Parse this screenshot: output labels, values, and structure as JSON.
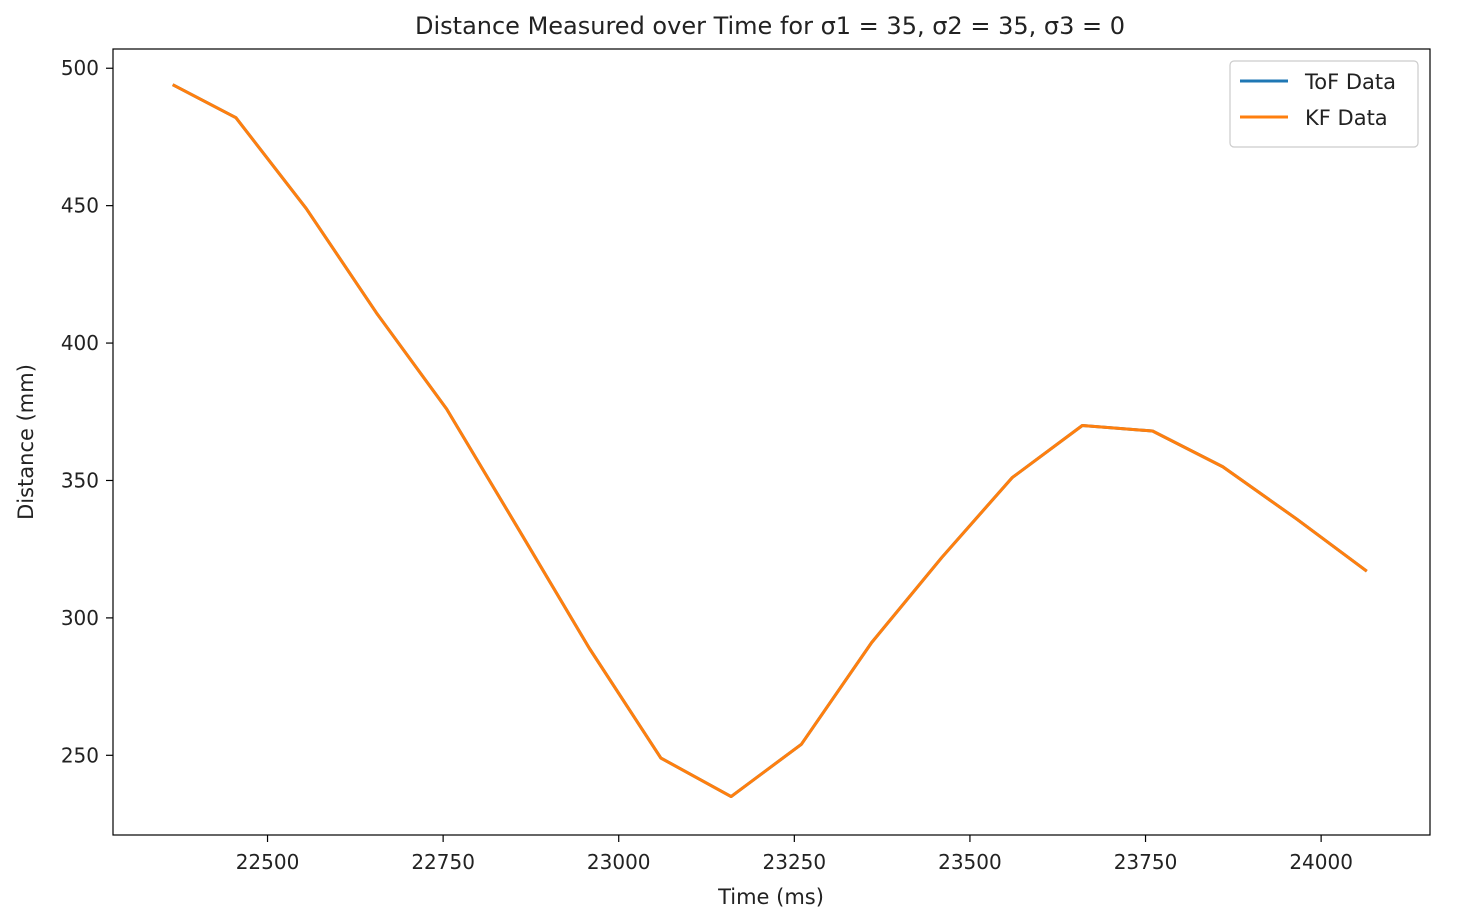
{
  "chart_data": {
    "type": "line",
    "title": "Distance Measured over Time for σ1 = 35, σ2 = 35, σ3 = 0",
    "xlabel": "Time (ms)",
    "ylabel": "Distance (mm)",
    "xlim": [
      22280,
      24155
    ],
    "ylim": [
      221,
      507
    ],
    "xticks": [
      22500,
      22750,
      23000,
      23250,
      23500,
      23750,
      24000
    ],
    "yticks": [
      250,
      300,
      350,
      400,
      450,
      500
    ],
    "grid": false,
    "legend_position": "top-right",
    "series": [
      {
        "name": "ToF Data",
        "color": "#1f77b4",
        "x": [
          22365,
          22455,
          22555,
          22655,
          22755,
          22858,
          22958,
          23060,
          23160,
          23260,
          23360,
          23460,
          23560,
          23660,
          23760,
          23860,
          23965,
          24065
        ],
        "y": [
          494,
          482,
          449,
          411,
          376,
          332,
          289,
          249,
          235,
          254,
          291,
          322,
          351,
          370,
          368,
          355,
          336,
          317
        ]
      },
      {
        "name": "KF Data",
        "color": "#ff7f0e",
        "x": [
          22365,
          22455,
          22555,
          22655,
          22755,
          22858,
          22958,
          23060,
          23160,
          23260,
          23360,
          23460,
          23560,
          23660,
          23760,
          23860,
          23965,
          24065
        ],
        "y": [
          494,
          482,
          449,
          411,
          376,
          332,
          289,
          249,
          235,
          254,
          291,
          322,
          351,
          370,
          368,
          355,
          336,
          317
        ]
      }
    ]
  }
}
